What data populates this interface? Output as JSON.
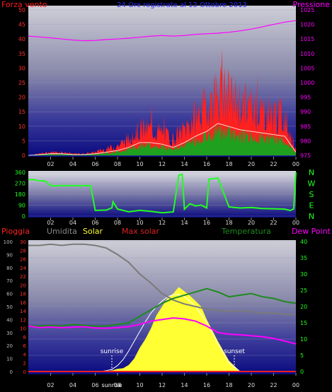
{
  "colors": {
    "wind": "#ff1a1a",
    "gust_fill": "#ff2020",
    "avg_fill": "#1fa01f",
    "gust_line": "#ffffff",
    "pressure": "#ff00ff",
    "direction": "#22ff22",
    "rain": "#ff2020",
    "humidity": "#7a7a7a",
    "solar": "#ffff33",
    "max_solar": "#ffffff",
    "temperature": "#1e8a1e",
    "dew_point": "#ff00ff",
    "axis_blue": "#4040ff",
    "axis_green": "#20ff20",
    "axis_red": "#ff3030",
    "sun_marker": "#ffffff"
  },
  "x_ticks": [
    "02",
    "04",
    "06",
    "08",
    "10",
    "12",
    "14",
    "16",
    "18",
    "20",
    "22",
    "00"
  ],
  "top": {
    "title": "24 Ore registrate al 13 Ottobre 2013",
    "left_label": "Forza vento",
    "right_label": "Pressione",
    "left_ticks": [
      0,
      5,
      10,
      15,
      20,
      25,
      30,
      35,
      40,
      45,
      50
    ],
    "right_ticks": [
      975,
      980,
      985,
      990,
      995,
      1000,
      1005,
      1010,
      1015,
      1020,
      1025
    ],
    "y_range": [
      0,
      50
    ],
    "y2_range": [
      975,
      1025
    ]
  },
  "middle": {
    "left_ticks": [
      0,
      90,
      180,
      270,
      360
    ],
    "y_range": [
      0,
      360
    ],
    "compass": [
      "N",
      "W",
      "S",
      "E",
      "N"
    ]
  },
  "bottom": {
    "legend": {
      "rain": "Pioggia",
      "humidity": "Umidita",
      "solar": "Solar",
      "max_solar": "Max solar",
      "temperature": "Temperatura",
      "dew_point": "Dew Point"
    },
    "humidity_ticks": [
      0,
      10,
      20,
      30,
      40,
      50,
      60,
      70,
      80,
      90,
      100
    ],
    "rain_ticks": [
      0,
      2,
      4,
      6,
      8,
      10,
      12,
      14,
      16,
      18,
      20,
      22,
      24,
      26,
      28,
      30
    ],
    "temp_ticks": [
      0,
      5,
      10,
      15,
      20,
      25,
      30,
      35,
      40
    ],
    "sunrise": "sunrise",
    "sunset": "sunset",
    "sunrise_axis": "sunrise"
  },
  "chart_data": [
    {
      "type": "area",
      "x": [
        0,
        1,
        2,
        3,
        4,
        5,
        6,
        7,
        8,
        9,
        10,
        11,
        12,
        13,
        14,
        15,
        16,
        17,
        18,
        19,
        20,
        21,
        22,
        23,
        24
      ],
      "series": [
        {
          "name": "Forza vento",
          "values": [
            0,
            0.5,
            1,
            1,
            0.5,
            0.5,
            1,
            2,
            3,
            5,
            8,
            8,
            7,
            5,
            8,
            12,
            15,
            20,
            18,
            16,
            15,
            14,
            13,
            12,
            2
          ]
        }
      ],
      "y2_series": [
        {
          "name": "Pressione",
          "values": [
            1016,
            1015.7,
            1015.4,
            1015,
            1014.6,
            1014.4,
            1014.5,
            1014.8,
            1015,
            1015.3,
            1015.6,
            1016,
            1016.2,
            1016,
            1016.2,
            1016.6,
            1016.8,
            1017,
            1017.3,
            1017.8,
            1018.4,
            1019.2,
            1020,
            1020.8,
            1021.3
          ]
        }
      ],
      "ylim": [
        0,
        50
      ],
      "y2lim": [
        975,
        1025
      ]
    },
    {
      "type": "line",
      "x": [
        0,
        0.5,
        1,
        1.5,
        2,
        3,
        4,
        5,
        5.6,
        6,
        7,
        7.5,
        7.6,
        8,
        9,
        10,
        11,
        12,
        13,
        13.5,
        13.8,
        14,
        14.5,
        15,
        15.5,
        16,
        16.2,
        16.5,
        17,
        18,
        19,
        20,
        21,
        22,
        23,
        23.5,
        23.8,
        24
      ],
      "series": [
        {
          "name": "direction",
          "values": [
            300,
            300,
            290,
            290,
            250,
            250,
            250,
            250,
            250,
            50,
            55,
            60,
            120,
            55,
            40,
            40,
            40,
            30,
            35,
            330,
            340,
            60,
            100,
            80,
            100,
            60,
            300,
            300,
            320,
            80,
            70,
            65,
            60,
            55,
            60,
            50,
            60,
            360
          ]
        }
      ],
      "ylim": [
        0,
        360
      ]
    },
    {
      "type": "area",
      "x": [
        0,
        1,
        2,
        3,
        4,
        5,
        6,
        6.5,
        7,
        7.5,
        8,
        8.5,
        9,
        9.5,
        10,
        10.5,
        11,
        11.5,
        12,
        12.5,
        13,
        13.5,
        14,
        14.5,
        15,
        15.5,
        16,
        16.5,
        17,
        18,
        19,
        20,
        21,
        22,
        23,
        24
      ],
      "series": [
        {
          "name": "Solar",
          "values": [
            0,
            0,
            0,
            0,
            0,
            0,
            0,
            0,
            5,
            10,
            25,
            30,
            60,
            120,
            220,
            300,
            400,
            520,
            600,
            680,
            720,
            780,
            740,
            700,
            650,
            600,
            480,
            380,
            280,
            100,
            0,
            0,
            0,
            0,
            0,
            0
          ]
        },
        {
          "name": "Max solar",
          "values": [
            0,
            0,
            0,
            0,
            0,
            0,
            0,
            0,
            8,
            20,
            55,
            110,
            190,
            280,
            370,
            460,
            540,
            600,
            650,
            690,
            710,
            710,
            690,
            650,
            600,
            530,
            450,
            360,
            260,
            80,
            0,
            0,
            0,
            0,
            0,
            0
          ]
        }
      ],
      "ylim": [
        0,
        1200
      ]
    },
    {
      "type": "line",
      "x": [
        0,
        1,
        2,
        3,
        4,
        5,
        6,
        7,
        8,
        9,
        10,
        11,
        12,
        13,
        14,
        15,
        16,
        17,
        18,
        19,
        20,
        21,
        22,
        23,
        24
      ],
      "series": [
        {
          "name": "Umidita",
          "values": [
            97,
            97,
            98,
            97,
            98,
            98,
            97,
            95,
            90,
            84,
            75,
            68,
            60,
            55,
            52,
            50,
            48,
            47,
            46,
            47,
            46,
            45,
            45,
            44,
            44
          ]
        },
        {
          "name": "Temperatura",
          "values": [
            14,
            14,
            14.2,
            14,
            14.5,
            14.2,
            14,
            14,
            14.5,
            15,
            17,
            19,
            21,
            22.5,
            23.5,
            24.5,
            25.5,
            24.5,
            23,
            23.5,
            24,
            23,
            22.5,
            21.5,
            21
          ]
        },
        {
          "name": "Dew Point",
          "values": [
            14,
            13.5,
            13.7,
            13.5,
            13.6,
            13.8,
            13.4,
            13.3,
            13.5,
            13.8,
            14.5,
            15.5,
            16,
            16.5,
            16.2,
            15.5,
            14,
            12,
            11.5,
            11.3,
            11,
            10.7,
            10.2,
            9.4,
            8.5
          ]
        },
        {
          "name": "Pioggia",
          "values": [
            0,
            0,
            0,
            0,
            0,
            0,
            0,
            0,
            0,
            0,
            0,
            0,
            0,
            0,
            0,
            0,
            0,
            0,
            0,
            0,
            0,
            0,
            0,
            0,
            0
          ]
        }
      ],
      "ylim": [
        0,
        100
      ],
      "y2lim": [
        0,
        40
      ]
    }
  ]
}
